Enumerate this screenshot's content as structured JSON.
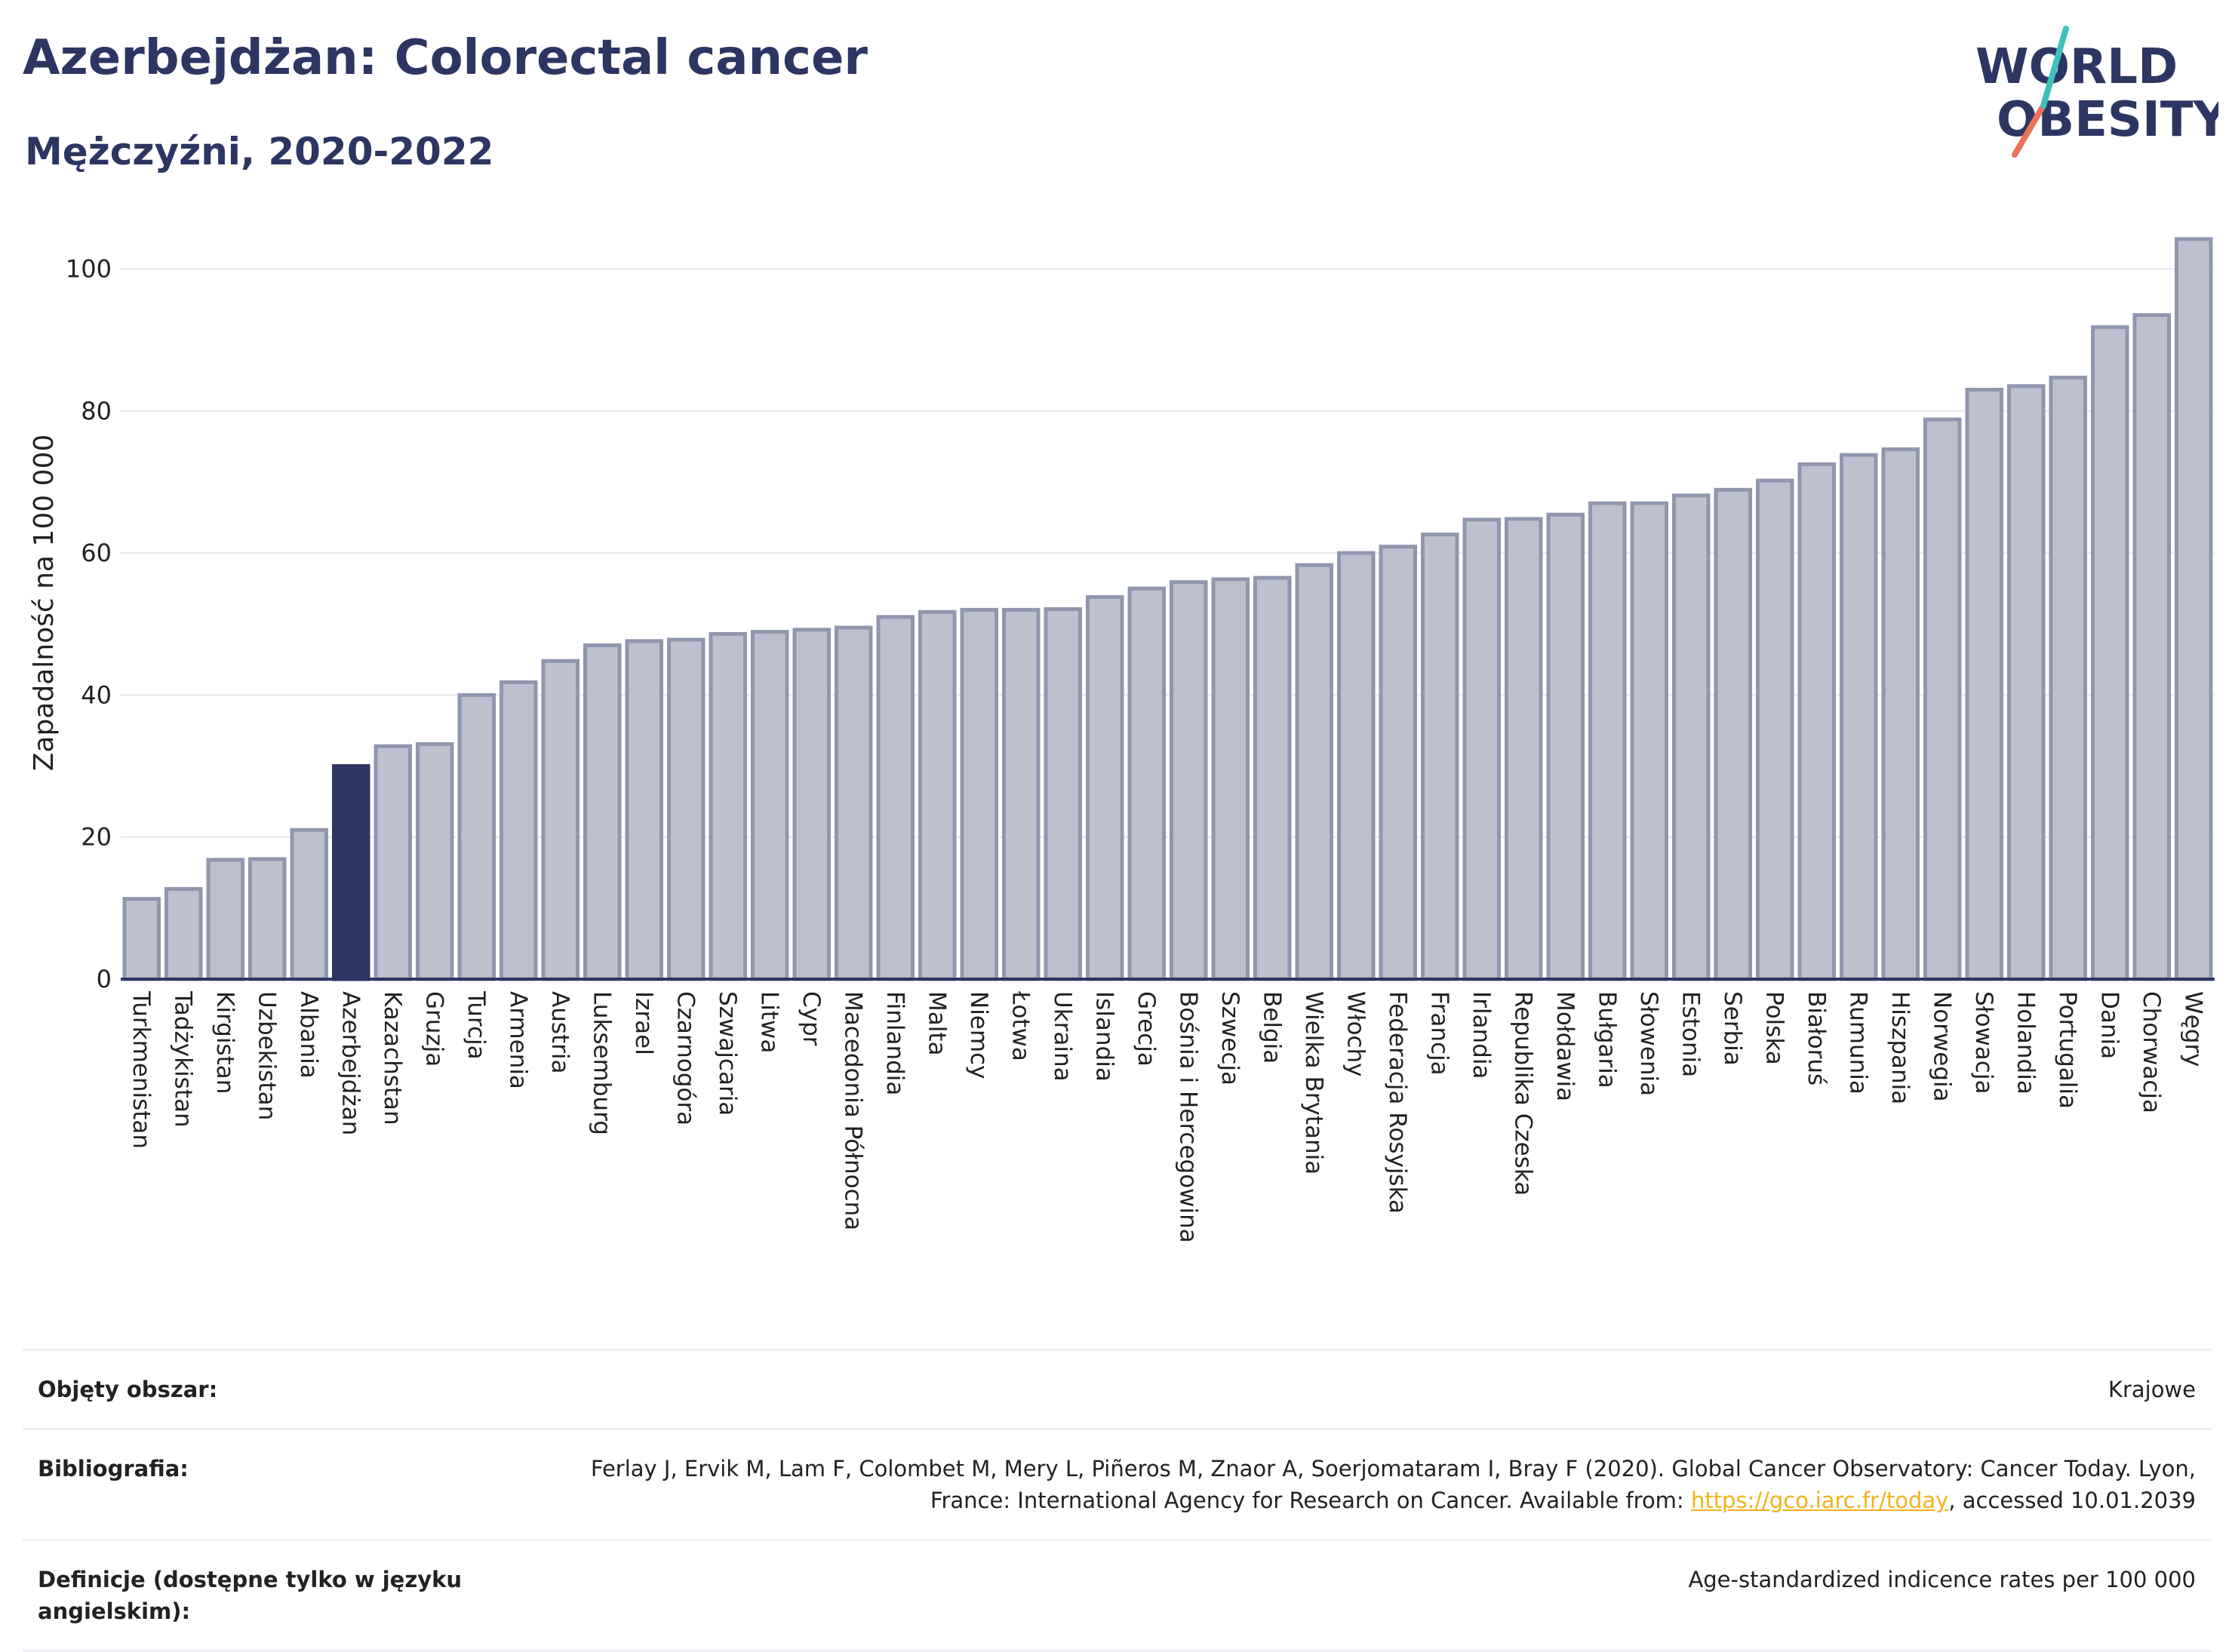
{
  "header": {
    "title": "Azerbejdżan: Colorectal cancer",
    "subtitle": "Mężczyźni, 2020-2022"
  },
  "logo": {
    "line1": "WORLD",
    "line2": "OBESITY"
  },
  "colors": {
    "bar": "#bcc0cf",
    "bar_stroke": "#9096ad",
    "highlight": "#2d3662",
    "axis": "#2d3662",
    "grid": "#e6e8ef"
  },
  "chart_data": {
    "type": "bar",
    "ylabel": "Zapadalność na 100 000",
    "ylim": [
      0,
      106
    ],
    "yticks": [
      0,
      20,
      40,
      60,
      80,
      100
    ],
    "grid": true,
    "highlight": "Azerbejdżan",
    "categories": [
      "Turkmenistan",
      "Tadżykistan",
      "Kirgistan",
      "Uzbekistan",
      "Albania",
      "Azerbejdżan",
      "Kazachstan",
      "Gruzja",
      "Turcja",
      "Armenia",
      "Austria",
      "Luksemburg",
      "Izrael",
      "Czarnogóra",
      "Szwajcaria",
      "Litwa",
      "Cypr",
      "Macedonia Północna",
      "Finlandia",
      "Malta",
      "Niemcy",
      "Łotwa",
      "Ukraina",
      "Islandia",
      "Grecja",
      "Bośnia i Hercegowina",
      "Szwecja",
      "Belgia",
      "Wielka Brytania",
      "Włochy",
      "Federacja Rosyjska",
      "Francja",
      "Irlandia",
      "Republika Czeska",
      "Mołdawia",
      "Bułgaria",
      "Słowenia",
      "Estonia",
      "Serbia",
      "Polska",
      "Białoruś",
      "Rumunia",
      "Hiszpania",
      "Norwegia",
      "Słowacja",
      "Holandia",
      "Portugalia",
      "Dania",
      "Chorwacja",
      "Węgry"
    ],
    "values": [
      11.3,
      12.7,
      16.8,
      16.9,
      21.0,
      30.0,
      32.8,
      33.1,
      40.0,
      41.8,
      44.8,
      47.0,
      47.6,
      47.8,
      48.6,
      48.9,
      49.2,
      49.5,
      51.0,
      51.7,
      52.0,
      52.0,
      52.1,
      53.8,
      55.0,
      55.9,
      56.3,
      56.5,
      58.3,
      60.0,
      60.9,
      62.6,
      64.7,
      64.8,
      65.4,
      67.0,
      67.0,
      68.1,
      68.9,
      70.2,
      72.5,
      73.8,
      74.6,
      78.8,
      83.0,
      83.5,
      84.7,
      91.8,
      93.5,
      104.2
    ]
  },
  "info": {
    "rows": [
      {
        "label": "Objęty obszar:",
        "value": "Krajowe"
      },
      {
        "label": "Bibliografia:",
        "value_pre": "Ferlay J, Ervik M, Lam F, Colombet M, Mery L, Piñeros M, Znaor A, Soerjomataram I, Bray F (2020). Global Cancer Observatory: Cancer Today. Lyon, France: International Agency for Research on Cancer. Available from: ",
        "link": "https://gco.iarc.fr/today",
        "value_post": ", accessed 10.01.2039"
      },
      {
        "label": "Definicje (dostępne tylko w języku angielskim):",
        "value": "Age-standardized indicence rates per 100 000"
      }
    ]
  }
}
